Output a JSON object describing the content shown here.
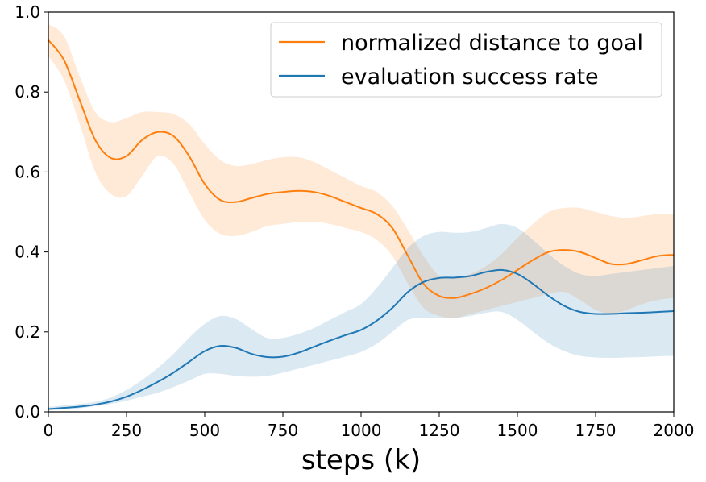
{
  "chart_data": {
    "type": "line",
    "title": "",
    "xlabel": "steps (k)",
    "ylabel": "",
    "xlim": [
      0,
      2000
    ],
    "ylim": [
      0,
      1.0
    ],
    "x_ticks": [
      0,
      250,
      500,
      750,
      1000,
      1250,
      1500,
      1750,
      2000
    ],
    "x_tick_labels": [
      "0",
      "250",
      "500",
      "750",
      "1000",
      "1250",
      "1500",
      "1750",
      "2000"
    ],
    "y_ticks": [
      0.0,
      0.2,
      0.4,
      0.6,
      0.8,
      1.0
    ],
    "y_tick_labels": [
      "0.0",
      "0.2",
      "0.4",
      "0.6",
      "0.8",
      "1.0"
    ],
    "grid": false,
    "legend_position": "top-right",
    "series": [
      {
        "name": "normalized distance to goal",
        "color": "#ff7f0e",
        "x": [
          0,
          50,
          100,
          150,
          200,
          250,
          300,
          350,
          400,
          450,
          500,
          550,
          600,
          650,
          700,
          750,
          800,
          850,
          900,
          950,
          1000,
          1050,
          1100,
          1150,
          1200,
          1250,
          1300,
          1350,
          1400,
          1450,
          1500,
          1550,
          1600,
          1650,
          1700,
          1750,
          1800,
          1850,
          1900,
          1950,
          2000
        ],
        "values": [
          0.93,
          0.88,
          0.78,
          0.68,
          0.635,
          0.64,
          0.68,
          0.7,
          0.69,
          0.64,
          0.57,
          0.53,
          0.525,
          0.535,
          0.545,
          0.55,
          0.553,
          0.55,
          0.54,
          0.525,
          0.51,
          0.495,
          0.46,
          0.39,
          0.32,
          0.29,
          0.285,
          0.295,
          0.31,
          0.33,
          0.355,
          0.38,
          0.4,
          0.405,
          0.4,
          0.385,
          0.37,
          0.37,
          0.38,
          0.39,
          0.393
        ],
        "lower": [
          0.89,
          0.83,
          0.72,
          0.6,
          0.545,
          0.54,
          0.59,
          0.64,
          0.62,
          0.55,
          0.48,
          0.445,
          0.44,
          0.45,
          0.465,
          0.47,
          0.475,
          0.475,
          0.47,
          0.46,
          0.45,
          0.43,
          0.39,
          0.32,
          0.26,
          0.24,
          0.235,
          0.245,
          0.255,
          0.265,
          0.275,
          0.285,
          0.295,
          0.3,
          0.28,
          0.255,
          0.245,
          0.255,
          0.27,
          0.28,
          0.285
        ],
        "upper": [
          0.97,
          0.94,
          0.84,
          0.75,
          0.725,
          0.735,
          0.75,
          0.75,
          0.745,
          0.72,
          0.67,
          0.63,
          0.615,
          0.62,
          0.63,
          0.637,
          0.637,
          0.625,
          0.605,
          0.585,
          0.565,
          0.55,
          0.515,
          0.455,
          0.39,
          0.34,
          0.335,
          0.345,
          0.365,
          0.395,
          0.435,
          0.47,
          0.5,
          0.51,
          0.51,
          0.5,
          0.49,
          0.485,
          0.49,
          0.495,
          0.495
        ]
      },
      {
        "name": "evaluation success rate",
        "color": "#1f77b4",
        "x": [
          0,
          50,
          100,
          150,
          200,
          250,
          300,
          350,
          400,
          450,
          500,
          550,
          600,
          650,
          700,
          750,
          800,
          850,
          900,
          950,
          1000,
          1050,
          1100,
          1150,
          1200,
          1250,
          1300,
          1350,
          1400,
          1450,
          1500,
          1550,
          1600,
          1650,
          1700,
          1750,
          1800,
          1850,
          1900,
          1950,
          2000
        ],
        "values": [
          0.007,
          0.01,
          0.013,
          0.018,
          0.026,
          0.038,
          0.055,
          0.075,
          0.098,
          0.125,
          0.152,
          0.165,
          0.16,
          0.145,
          0.137,
          0.138,
          0.148,
          0.163,
          0.178,
          0.192,
          0.205,
          0.228,
          0.26,
          0.3,
          0.325,
          0.335,
          0.336,
          0.34,
          0.35,
          0.355,
          0.345,
          0.32,
          0.29,
          0.265,
          0.25,
          0.245,
          0.245,
          0.247,
          0.248,
          0.25,
          0.252
        ],
        "lower": [
          0.003,
          0.006,
          0.009,
          0.014,
          0.02,
          0.028,
          0.038,
          0.048,
          0.062,
          0.078,
          0.095,
          0.095,
          0.09,
          0.088,
          0.09,
          0.098,
          0.108,
          0.118,
          0.128,
          0.138,
          0.15,
          0.17,
          0.2,
          0.23,
          0.235,
          0.235,
          0.235,
          0.24,
          0.248,
          0.25,
          0.23,
          0.2,
          0.172,
          0.152,
          0.14,
          0.136,
          0.135,
          0.136,
          0.137,
          0.139,
          0.14
        ],
        "upper": [
          0.012,
          0.016,
          0.02,
          0.025,
          0.036,
          0.055,
          0.08,
          0.11,
          0.145,
          0.185,
          0.22,
          0.24,
          0.232,
          0.207,
          0.185,
          0.185,
          0.195,
          0.21,
          0.23,
          0.25,
          0.27,
          0.31,
          0.36,
          0.41,
          0.44,
          0.45,
          0.448,
          0.45,
          0.46,
          0.47,
          0.46,
          0.43,
          0.395,
          0.365,
          0.345,
          0.34,
          0.345,
          0.35,
          0.355,
          0.36,
          0.365
        ]
      }
    ]
  }
}
